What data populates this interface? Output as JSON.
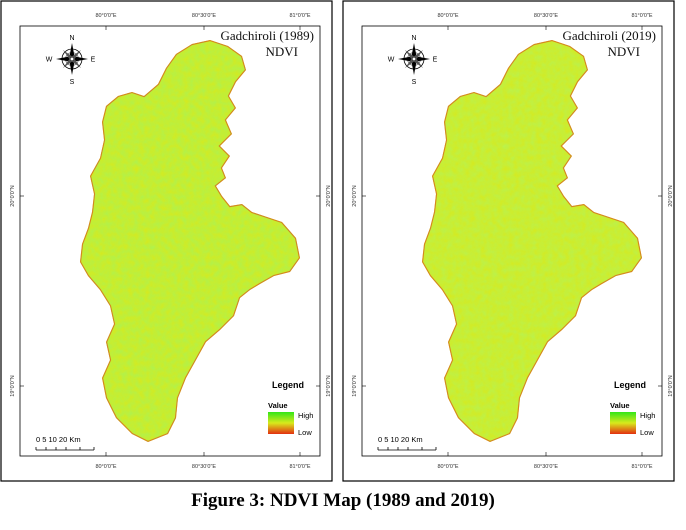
{
  "colors": {
    "ndvi_high": "#33e61a",
    "ndvi_mid": "#d8ea1c",
    "ndvi_low": "#e23010",
    "frame": "#000000"
  },
  "panels": [
    {
      "title": "Gadchiroli (1989)",
      "subtitle": "NDVI",
      "top_ticks": [
        "80°0'0\"E",
        "80°30'0\"E",
        "81°0'0\"E"
      ],
      "bottom_ticks": [
        "80°0'0\"E",
        "80°30'0\"E",
        "81°0'0\"E"
      ],
      "left_ticks": [
        "20°0'0\"N",
        "19°0'0\"N"
      ],
      "right_ticks": [
        "20°0'0\"N",
        "19°0'0\"N"
      ],
      "compass": {
        "n": "N",
        "s": "S",
        "e": "E",
        "w": "W"
      },
      "legend": {
        "title": "Legend",
        "value_label": "Value",
        "high": "High",
        "low": "Low"
      },
      "scale": {
        "numbers": "0  5 10     20 Km"
      },
      "ndvi_greenness": 0.62
    },
    {
      "title": "Gadchiroli (2019)",
      "subtitle": "NDVI",
      "top_ticks": [
        "80°0'0\"E",
        "80°30'0\"E",
        "81°0'0\"E"
      ],
      "bottom_ticks": [
        "80°0'0\"E",
        "80°30'0\"E",
        "81°0'0\"E"
      ],
      "left_ticks": [
        "20°0'0\"N",
        "19°0'0\"N"
      ],
      "right_ticks": [
        "20°0'0\"N",
        "19°0'0\"N"
      ],
      "compass": {
        "n": "N",
        "s": "S",
        "e": "E",
        "w": "W"
      },
      "legend": {
        "title": "Legend",
        "value_label": "Value",
        "high": "High",
        "low": "Low"
      },
      "scale": {
        "numbers": "0  5 10     20 Km"
      },
      "ndvi_greenness": 0.55
    }
  ],
  "caption": "Figure 3: NDVI Map (1989 and 2019)"
}
